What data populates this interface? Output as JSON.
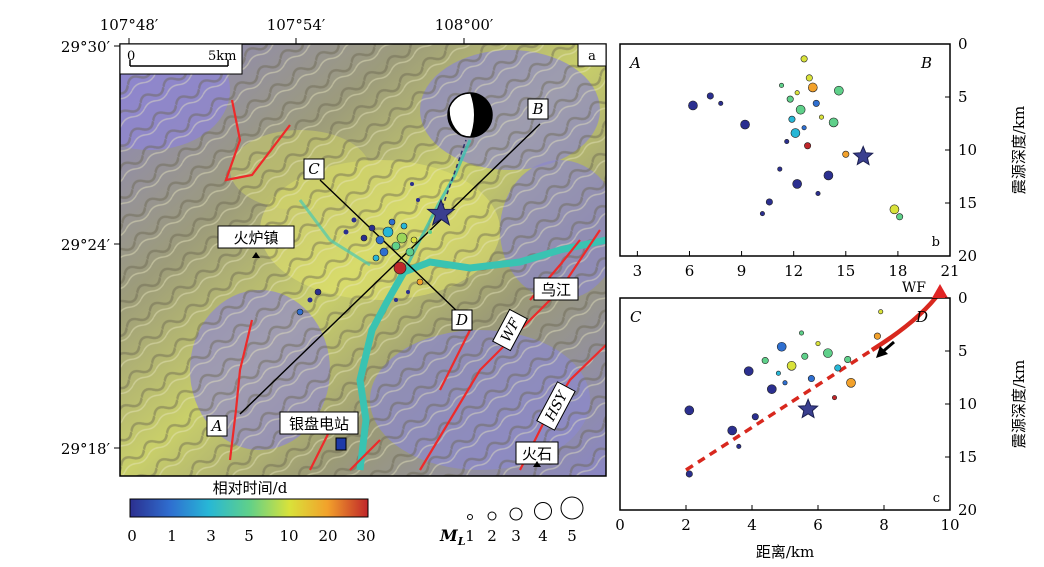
{
  "map": {
    "panel_label": "a",
    "top_ticks": [
      "107°48′",
      "107°54′",
      "108°00′"
    ],
    "left_ticks": [
      "29°30′",
      "29°24′",
      "29°18′"
    ],
    "scalebar": {
      "zero": "0",
      "end": "5km"
    },
    "places": {
      "huoluzhen": "火炉镇",
      "yinpan": "银盘电站",
      "wujiang": "乌江",
      "huoshi": "火石"
    },
    "faults": {
      "wf": "WF",
      "hsy": "HSY"
    },
    "profile_labels": {
      "A": "A",
      "B": "B",
      "C": "C",
      "D": "D"
    }
  },
  "colorbar": {
    "title": "相对时间/d",
    "ticks": [
      "0",
      "1",
      "3",
      "5",
      "10",
      "20",
      "30"
    ],
    "colors": [
      "#2b2f8f",
      "#2f6fd0",
      "#27b7d6",
      "#5fd08a",
      "#d9e23a",
      "#f2a12b",
      "#c0262a"
    ]
  },
  "magnitude_legend": {
    "label": "M",
    "subscript": "L",
    "values": [
      "1",
      "2",
      "3",
      "4",
      "5"
    ]
  },
  "chart_data": [
    {
      "type": "scatter",
      "panel": "b",
      "corner_labels": [
        "A",
        "B"
      ],
      "xlim": [
        2,
        21
      ],
      "xticks": [
        "3",
        "6",
        "9",
        "12",
        "15",
        "18",
        "21"
      ],
      "ylim": [
        0,
        20
      ],
      "yticks": [
        "0",
        "5",
        "10",
        "15",
        "20"
      ],
      "ylabel": "震源深度/km",
      "points": [
        {
          "x": 6.2,
          "y": 5.8,
          "c": 0
        },
        {
          "x": 7.2,
          "y": 4.9,
          "c": 0
        },
        {
          "x": 7.8,
          "y": 5.6,
          "c": 0
        },
        {
          "x": 9.2,
          "y": 7.6,
          "c": 0
        },
        {
          "x": 11.8,
          "y": 5.2,
          "c": 3
        },
        {
          "x": 12.2,
          "y": 4.6,
          "c": 4
        },
        {
          "x": 12.4,
          "y": 6.2,
          "c": 3
        },
        {
          "x": 11.9,
          "y": 7.1,
          "c": 2
        },
        {
          "x": 12.6,
          "y": 7.9,
          "c": 1
        },
        {
          "x": 12.1,
          "y": 8.4,
          "c": 2
        },
        {
          "x": 13.3,
          "y": 5.6,
          "c": 1
        },
        {
          "x": 13.6,
          "y": 6.9,
          "c": 4
        },
        {
          "x": 14.3,
          "y": 7.4,
          "c": 3
        },
        {
          "x": 12.8,
          "y": 9.6,
          "c": 6
        },
        {
          "x": 11.6,
          "y": 9.2,
          "c": 0
        },
        {
          "x": 13.1,
          "y": 4.1,
          "c": 5
        },
        {
          "x": 12.9,
          "y": 3.2,
          "c": 4
        },
        {
          "x": 11.3,
          "y": 3.9,
          "c": 3
        },
        {
          "x": 14.6,
          "y": 4.4,
          "c": 3
        },
        {
          "x": 15.0,
          "y": 10.4,
          "c": 5
        },
        {
          "x": 11.2,
          "y": 11.8,
          "c": 0
        },
        {
          "x": 12.2,
          "y": 13.2,
          "c": 0
        },
        {
          "x": 10.6,
          "y": 14.9,
          "c": 0
        },
        {
          "x": 13.4,
          "y": 14.1,
          "c": 0
        },
        {
          "x": 17.8,
          "y": 15.6,
          "c": 4
        },
        {
          "x": 18.1,
          "y": 16.3,
          "c": 3
        },
        {
          "x": 10.2,
          "y": 16.0,
          "c": 0
        },
        {
          "x": 14.0,
          "y": 12.4,
          "c": 0
        },
        {
          "x": 12.6,
          "y": 1.4,
          "c": 4
        }
      ],
      "mainshock": {
        "x": 16.0,
        "y": 10.6
      }
    },
    {
      "type": "scatter",
      "panel": "c",
      "corner_labels": [
        "C",
        "D"
      ],
      "xlim": [
        0,
        10
      ],
      "xticks": [
        "0",
        "2",
        "4",
        "6",
        "8",
        "10"
      ],
      "ylim": [
        0,
        20
      ],
      "yticks": [
        "0",
        "5",
        "10",
        "15",
        "20"
      ],
      "xlabel": "距离/km",
      "ylabel": "震源深度/km",
      "fault_label": "WF",
      "points": [
        {
          "x": 3.9,
          "y": 6.9,
          "c": 0
        },
        {
          "x": 4.4,
          "y": 5.9,
          "c": 3
        },
        {
          "x": 4.8,
          "y": 7.1,
          "c": 2
        },
        {
          "x": 5.2,
          "y": 6.4,
          "c": 4
        },
        {
          "x": 5.6,
          "y": 5.5,
          "c": 3
        },
        {
          "x": 6.0,
          "y": 4.3,
          "c": 4
        },
        {
          "x": 6.3,
          "y": 5.2,
          "c": 3
        },
        {
          "x": 6.6,
          "y": 6.6,
          "c": 2
        },
        {
          "x": 5.0,
          "y": 8.0,
          "c": 1
        },
        {
          "x": 4.6,
          "y": 8.6,
          "c": 0
        },
        {
          "x": 5.8,
          "y": 7.6,
          "c": 1
        },
        {
          "x": 6.5,
          "y": 9.4,
          "c": 6
        },
        {
          "x": 7.0,
          "y": 8.0,
          "c": 5
        },
        {
          "x": 7.8,
          "y": 3.6,
          "c": 5
        },
        {
          "x": 7.9,
          "y": 1.3,
          "c": 4
        },
        {
          "x": 2.1,
          "y": 10.6,
          "c": 0
        },
        {
          "x": 2.1,
          "y": 16.6,
          "c": 0
        },
        {
          "x": 3.6,
          "y": 14.0,
          "c": 0
        },
        {
          "x": 3.4,
          "y": 12.5,
          "c": 0
        },
        {
          "x": 4.1,
          "y": 11.2,
          "c": 0
        },
        {
          "x": 5.5,
          "y": 3.3,
          "c": 3
        },
        {
          "x": 4.9,
          "y": 4.6,
          "c": 1
        },
        {
          "x": 6.9,
          "y": 5.8,
          "c": 3
        }
      ],
      "mainshock": {
        "x": 5.7,
        "y": 10.5
      }
    }
  ]
}
